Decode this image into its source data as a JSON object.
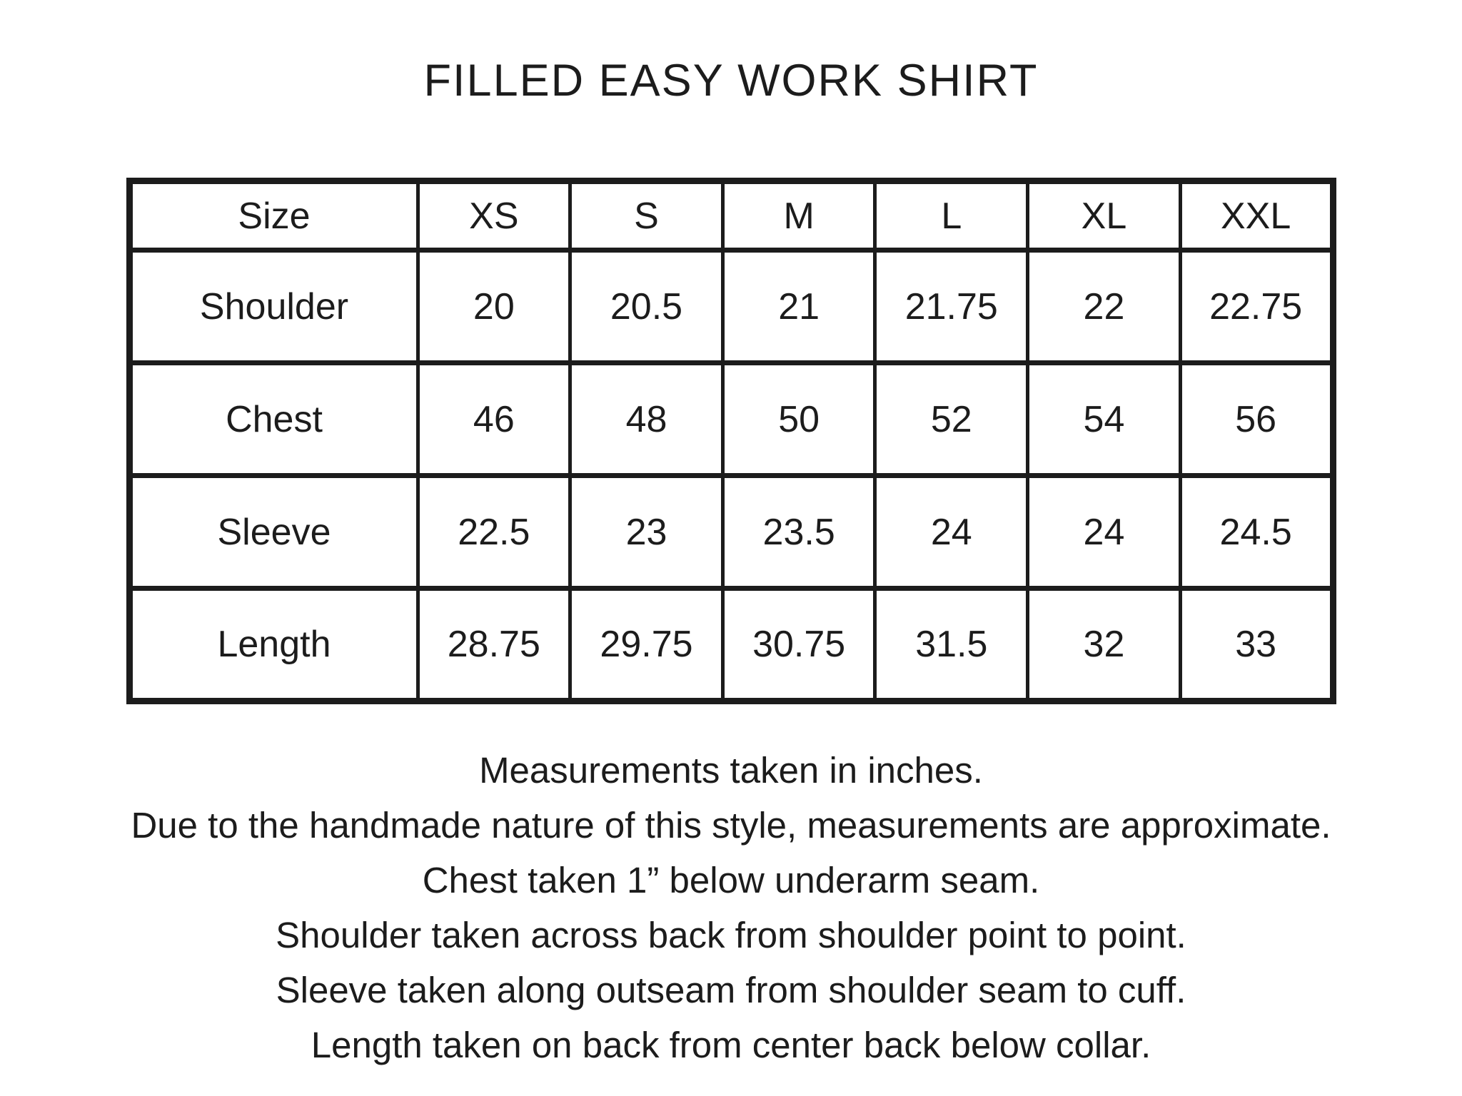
{
  "title": "FILLED EASY WORK SHIRT",
  "size_chart": {
    "columns": [
      "Size",
      "XS",
      "S",
      "M",
      "L",
      "XL",
      "XXL"
    ],
    "rows": [
      {
        "label": "Shoulder",
        "values": [
          "20",
          "20.5",
          "21",
          "21.75",
          "22",
          "22.75"
        ]
      },
      {
        "label": "Chest",
        "values": [
          "46",
          "48",
          "50",
          "52",
          "54",
          "56"
        ]
      },
      {
        "label": "Sleeve",
        "values": [
          "22.5",
          "23",
          "23.5",
          "24",
          "24",
          "24.5"
        ]
      },
      {
        "label": "Length",
        "values": [
          "28.75",
          "29.75",
          "30.75",
          "31.5",
          "32",
          "33"
        ]
      }
    ]
  },
  "notes": [
    "Measurements taken in inches.",
    "Due to the handmade nature of this style, measurements are approximate.",
    "Chest taken 1” below underarm seam.",
    "Shoulder taken across back from shoulder point to point.",
    "Sleeve taken along outseam from shoulder seam to cuff.",
    "Length taken on back from center back below collar."
  ],
  "colors": {
    "background": "#ffffff",
    "text": "#1c1c1c",
    "border": "#1c1c1c"
  }
}
